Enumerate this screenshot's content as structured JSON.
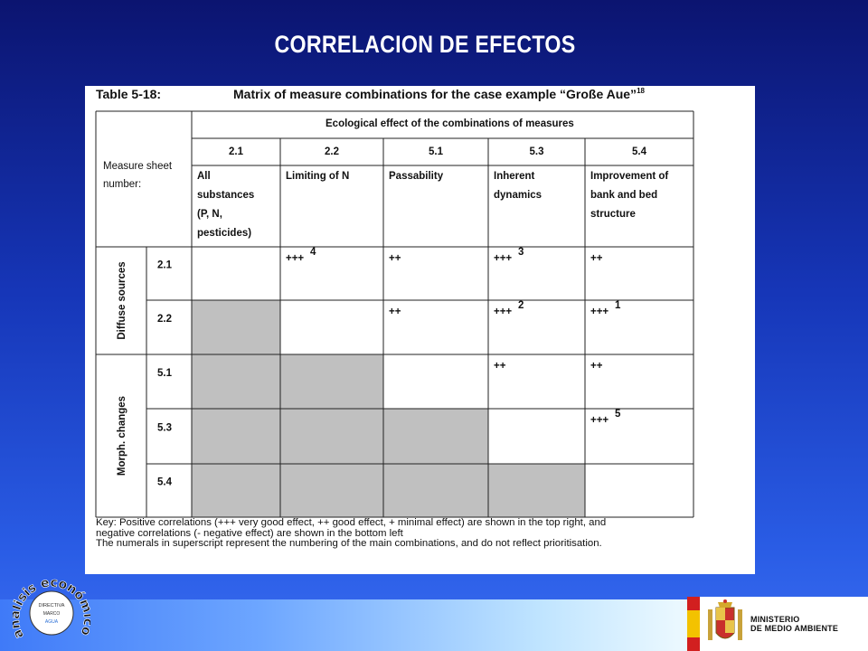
{
  "slide": {
    "title": "CORRELACION DE EFECTOS"
  },
  "table": {
    "label": "Table 5-18:",
    "caption": "Matrix of measure combinations for the case example “Große Aue”",
    "caption_sup": "18",
    "corner_label_line1": "Measure   sheet",
    "corner_label_line2": "number:",
    "effect_header": "Ecological effect of the combinations of measures",
    "columns": [
      {
        "code": "2.1",
        "desc": [
          "All",
          "substances",
          "(P, N,",
          "pesticides)"
        ]
      },
      {
        "code": "2.2",
        "desc": [
          "Limiting of N"
        ]
      },
      {
        "code": "5.1",
        "desc": [
          "Passability"
        ]
      },
      {
        "code": "5.3",
        "desc": [
          "Inherent",
          "dynamics"
        ]
      },
      {
        "code": "5.4",
        "desc": [
          "Improvement of",
          "bank and bed",
          "structure"
        ]
      }
    ],
    "groups": [
      {
        "label": "Diffuse sources",
        "rows": [
          "2.1",
          "2.2"
        ]
      },
      {
        "label": "Morph. changes",
        "rows": [
          "5.1",
          "5.3",
          "5.4"
        ]
      }
    ],
    "cells": [
      [
        {
          "v": "",
          "shade": false
        },
        {
          "v": "+++",
          "sup": "4"
        },
        {
          "v": "++"
        },
        {
          "v": "+++",
          "sup": "3"
        },
        {
          "v": "++"
        }
      ],
      [
        {
          "v": "",
          "shade": true
        },
        {
          "v": ""
        },
        {
          "v": "++"
        },
        {
          "v": "+++",
          "sup": "2"
        },
        {
          "v": "+++",
          "sup": "1"
        }
      ],
      [
        {
          "v": "",
          "shade": true
        },
        {
          "v": "",
          "shade": true
        },
        {
          "v": ""
        },
        {
          "v": "++"
        },
        {
          "v": "++"
        }
      ],
      [
        {
          "v": "",
          "shade": true
        },
        {
          "v": "",
          "shade": true
        },
        {
          "v": "",
          "shade": true
        },
        {
          "v": ""
        },
        {
          "v": "+++",
          "sup": "5"
        }
      ],
      [
        {
          "v": "",
          "shade": true
        },
        {
          "v": "",
          "shade": true
        },
        {
          "v": "",
          "shade": true
        },
        {
          "v": "",
          "shade": true
        },
        {
          "v": ""
        }
      ]
    ],
    "key_lines": [
      "Key: Positive correlations (+++ very good effect, ++ good effect, + minimal effect) are shown in the top right, and",
      "negative correlations (- negative effect) are shown in the bottom left",
      "The numerals in superscript represent the numbering of the main combinations, and do not reflect prioritisation."
    ]
  },
  "logo_left": {
    "arc_text": "análisis económico",
    "inner_line1": "DIRECTIVA",
    "inner_line2": "MARCO",
    "inner_line3": "AGUA"
  },
  "ministry": {
    "line1": "MINISTERIO",
    "line2": "DE MEDIO AMBIENTE"
  },
  "colors": {
    "shade": "#c0c0c0",
    "bg_top": "#0b1470",
    "bg_bottom": "#3a6cf0",
    "flag_red": "#d21f1f",
    "flag_yellow": "#f3c200"
  }
}
